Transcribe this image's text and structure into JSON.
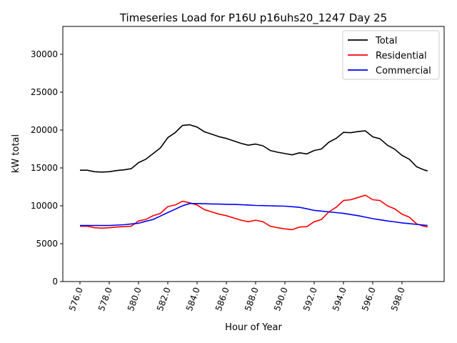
{
  "chart_data": {
    "type": "line",
    "title": "Timeseries Load for P16U p16uhs20_1247  Day 25",
    "xlabel": "Hour of Year",
    "ylabel": "kW total",
    "xlim": [
      574.83,
      600.88
    ],
    "ylim": [
      0,
      33680
    ],
    "xticks": [
      576,
      578,
      580,
      582,
      584,
      586,
      588,
      590,
      592,
      594,
      596,
      598
    ],
    "xtick_labels": [
      "576.0",
      "578.0",
      "580.0",
      "582.0",
      "584.0",
      "586.0",
      "588.0",
      "590.0",
      "592.0",
      "594.0",
      "596.0",
      "598.0"
    ],
    "yticks": [
      0,
      5000,
      10000,
      15000,
      20000,
      25000,
      30000
    ],
    "ytick_labels": [
      "0",
      "5000",
      "10000",
      "15000",
      "20000",
      "25000",
      "30000"
    ],
    "grid": false,
    "legend_position": "top-right",
    "x": [
      576,
      576.5,
      577,
      577.5,
      578,
      578.5,
      579,
      579.5,
      580,
      580.5,
      581,
      581.5,
      582,
      582.5,
      583,
      583.5,
      584,
      584.5,
      585,
      585.5,
      586,
      586.5,
      587,
      587.5,
      588,
      588.5,
      589,
      589.5,
      590,
      590.5,
      591,
      591.5,
      592,
      592.5,
      593,
      593.5,
      594,
      594.5,
      595,
      595.5,
      596,
      596.5,
      597,
      597.5,
      598,
      598.5,
      599,
      599.5,
      599.75
    ],
    "series": [
      {
        "name": "Total",
        "color": "#000000",
        "values": [
          14700,
          14700,
          14500,
          14450,
          14500,
          14650,
          14750,
          14900,
          15700,
          16150,
          16900,
          17650,
          19000,
          19650,
          20600,
          20700,
          20400,
          19775,
          19450,
          19125,
          18900,
          18575,
          18250,
          18000,
          18150,
          17925,
          17300,
          17075,
          16900,
          16725,
          17000,
          16850,
          17300,
          17500,
          18400,
          18900,
          19700,
          19650,
          19800,
          19900,
          19100,
          18850,
          18000,
          17475,
          16650,
          16150,
          15150,
          14750,
          14600
        ]
      },
      {
        "name": "Residential",
        "color": "#ff0000",
        "values": [
          7300,
          7300,
          7100,
          7050,
          7100,
          7200,
          7250,
          7300,
          8000,
          8200,
          8700,
          9000,
          9900,
          10100,
          10600,
          10400,
          10100,
          9500,
          9200,
          8900,
          8700,
          8400,
          8100,
          7900,
          8100,
          7900,
          7300,
          7100,
          6950,
          6850,
          7200,
          7250,
          7900,
          8200,
          9200,
          9800,
          10700,
          10800,
          11100,
          11400,
          10800,
          10700,
          10000,
          9600,
          8900,
          8500,
          7600,
          7300,
          7200
        ]
      },
      {
        "name": "Commercial",
        "color": "#0000ff",
        "values": [
          7400,
          7400,
          7400,
          7400,
          7400,
          7450,
          7500,
          7600,
          7700,
          7950,
          8200,
          8650,
          9100,
          9550,
          10000,
          10300,
          10300,
          10275,
          10250,
          10225,
          10200,
          10175,
          10150,
          10100,
          10050,
          10025,
          10000,
          9975,
          9950,
          9875,
          9800,
          9600,
          9400,
          9300,
          9200,
          9100,
          9000,
          8850,
          8700,
          8500,
          8300,
          8150,
          8000,
          7875,
          7750,
          7650,
          7550,
          7450,
          7400
        ]
      }
    ]
  }
}
